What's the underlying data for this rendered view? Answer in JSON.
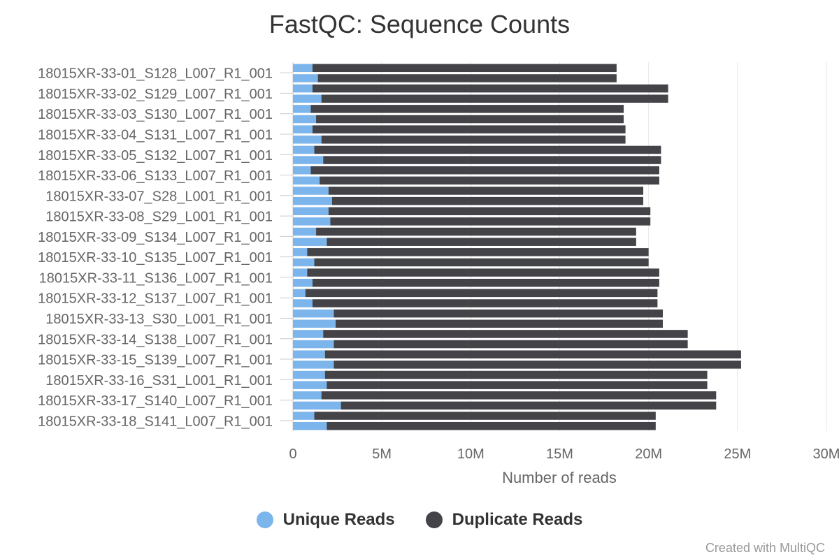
{
  "chart_data": {
    "type": "bar",
    "orientation": "horizontal",
    "stacked": true,
    "title": "FastQC: Sequence Counts",
    "xlabel": "Number of reads",
    "ylabel": "",
    "xlim": [
      0,
      30000000
    ],
    "xticks": [
      0,
      5000000,
      10000000,
      15000000,
      20000000,
      25000000,
      30000000
    ],
    "xtick_labels": [
      "0",
      "5M",
      "10M",
      "15M",
      "20M",
      "25M",
      "30M"
    ],
    "grid": true,
    "legend_position": "bottom-center",
    "categories": [
      "18015XR-33-01_S128_L007_R1_001",
      "18015XR-33-02_S129_L007_R1_001",
      "18015XR-33-03_S130_L007_R1_001",
      "18015XR-33-04_S131_L007_R1_001",
      "18015XR-33-05_S132_L007_R1_001",
      "18015XR-33-06_S133_L007_R1_001",
      "18015XR-33-07_S28_L001_R1_001",
      "18015XR-33-08_S29_L001_R1_001",
      "18015XR-33-09_S134_L007_R1_001",
      "18015XR-33-10_S135_L007_R1_001",
      "18015XR-33-11_S136_L007_R1_001",
      "18015XR-33-12_S137_L007_R1_001",
      "18015XR-33-13_S30_L001_R1_001",
      "18015XR-33-14_S138_L007_R1_001",
      "18015XR-33-15_S139_L007_R1_001",
      "18015XR-33-16_S31_L001_R1_001",
      "18015XR-33-17_S140_L007_R1_001",
      "18015XR-33-18_S141_L007_R1_001"
    ],
    "bar_rows": [
      {
        "unique": 1100000,
        "total": 18200000
      },
      {
        "unique": 1400000,
        "total": 18200000
      },
      {
        "unique": 1100000,
        "total": 21100000
      },
      {
        "unique": 1600000,
        "total": 21100000
      },
      {
        "unique": 1000000,
        "total": 18600000
      },
      {
        "unique": 1300000,
        "total": 18600000
      },
      {
        "unique": 1100000,
        "total": 18700000
      },
      {
        "unique": 1600000,
        "total": 18700000
      },
      {
        "unique": 1200000,
        "total": 20700000
      },
      {
        "unique": 1700000,
        "total": 20700000
      },
      {
        "unique": 1000000,
        "total": 20600000
      },
      {
        "unique": 1500000,
        "total": 20600000
      },
      {
        "unique": 2000000,
        "total": 19700000
      },
      {
        "unique": 2200000,
        "total": 19700000
      },
      {
        "unique": 2000000,
        "total": 20100000
      },
      {
        "unique": 2100000,
        "total": 20100000
      },
      {
        "unique": 1300000,
        "total": 19300000
      },
      {
        "unique": 1900000,
        "total": 19300000
      },
      {
        "unique": 800000,
        "total": 20000000
      },
      {
        "unique": 1200000,
        "total": 20000000
      },
      {
        "unique": 800000,
        "total": 20600000
      },
      {
        "unique": 1100000,
        "total": 20600000
      },
      {
        "unique": 700000,
        "total": 20500000
      },
      {
        "unique": 1100000,
        "total": 20500000
      },
      {
        "unique": 2300000,
        "total": 20800000
      },
      {
        "unique": 2400000,
        "total": 20800000
      },
      {
        "unique": 1700000,
        "total": 22200000
      },
      {
        "unique": 2300000,
        "total": 22200000
      },
      {
        "unique": 1800000,
        "total": 25200000
      },
      {
        "unique": 2300000,
        "total": 25200000
      },
      {
        "unique": 1800000,
        "total": 23300000
      },
      {
        "unique": 1900000,
        "total": 23300000
      },
      {
        "unique": 1600000,
        "total": 23800000
      },
      {
        "unique": 2700000,
        "total": 23800000
      },
      {
        "unique": 1200000,
        "total": 20400000
      },
      {
        "unique": 1900000,
        "total": 20400000
      }
    ],
    "series": [
      {
        "name": "Unique Reads",
        "color": "#7cb5ec"
      },
      {
        "name": "Duplicate Reads",
        "color": "#434348"
      }
    ]
  },
  "legend": {
    "unique_label": "Unique Reads",
    "duplicate_label": "Duplicate Reads",
    "unique_color": "#7cb5ec",
    "duplicate_color": "#434348"
  },
  "credits": "Created with MultiQC"
}
